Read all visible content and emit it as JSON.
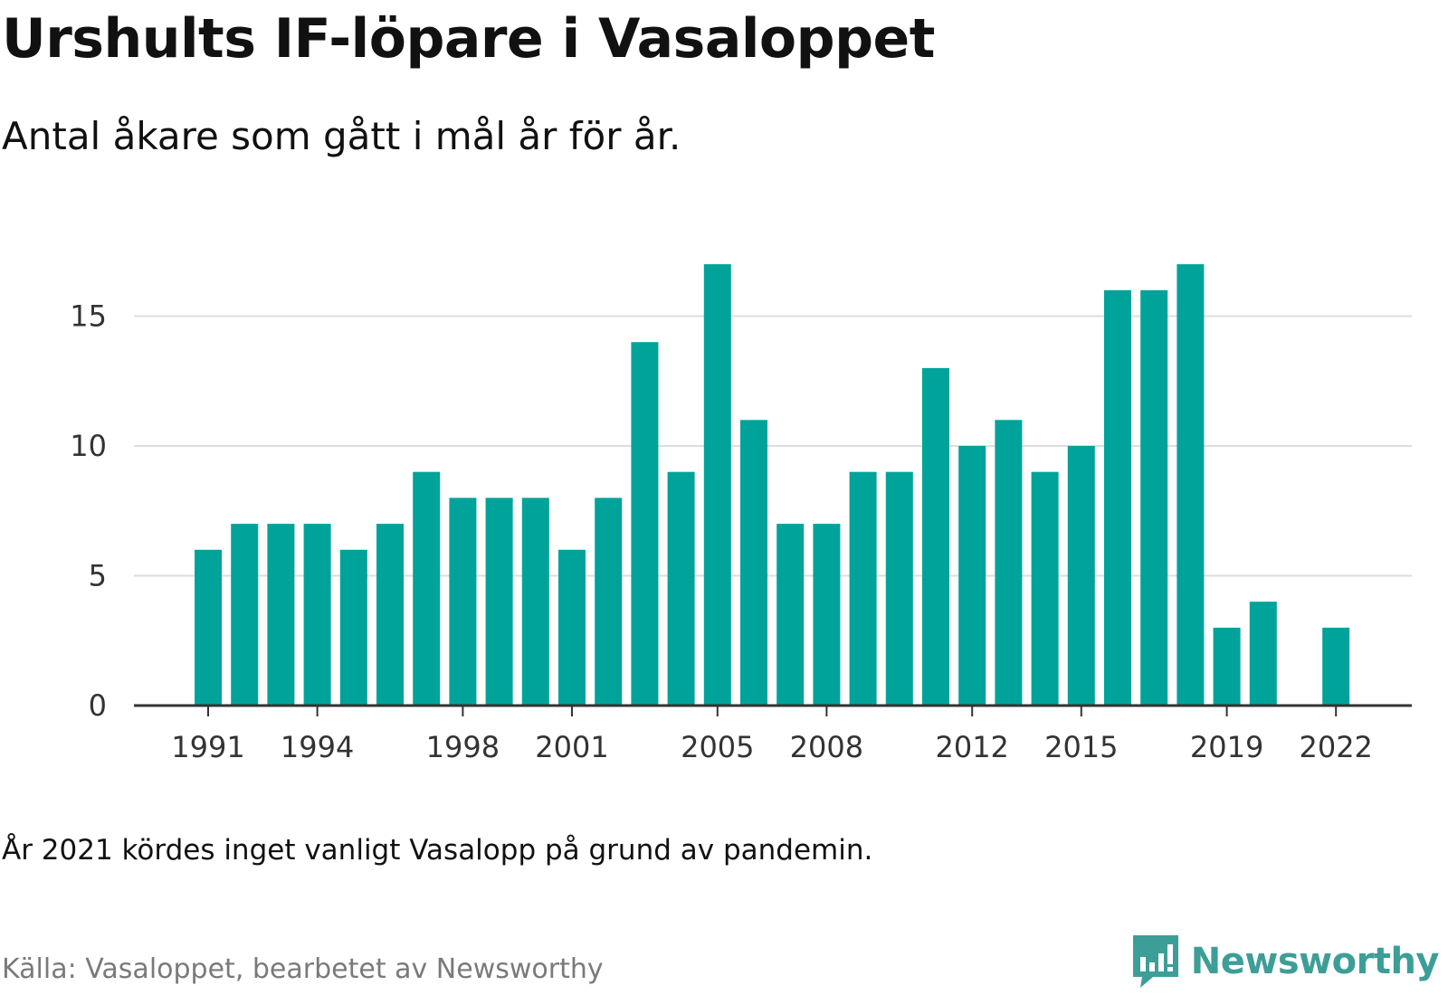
{
  "title": "Urshults IF-löpare i Vasaloppet",
  "subtitle": "Antal åkare som gått i mål år för år.",
  "note": "År 2021 kördes inget vanligt Vasalopp på grund av pandemin.",
  "source": "Källa: Vasaloppet, bearbetet av Newsworthy",
  "brand": {
    "name": "Newsworthy",
    "icon": "newsworthy-logo-icon",
    "color": "#3d9e98"
  },
  "colors": {
    "bar": "#00a39a",
    "grid": "#dddddd",
    "axis": "#333333"
  },
  "chart_data": {
    "type": "bar",
    "categories": [
      1991,
      1992,
      1993,
      1994,
      1995,
      1996,
      1997,
      1998,
      1999,
      2000,
      2001,
      2002,
      2003,
      2004,
      2005,
      2006,
      2007,
      2008,
      2009,
      2010,
      2011,
      2012,
      2013,
      2014,
      2015,
      2016,
      2017,
      2018,
      2019,
      2020,
      2021,
      2022
    ],
    "values": [
      6,
      7,
      7,
      7,
      6,
      7,
      9,
      8,
      8,
      8,
      6,
      8,
      14,
      9,
      17,
      11,
      7,
      7,
      9,
      9,
      13,
      10,
      11,
      9,
      10,
      16,
      16,
      17,
      3,
      4,
      0,
      3
    ],
    "x_tick_labels": [
      1991,
      1994,
      1998,
      2001,
      2005,
      2008,
      2012,
      2015,
      2019,
      2022
    ],
    "y_ticks": [
      0,
      5,
      10,
      15
    ],
    "ylim": [
      0,
      17
    ],
    "grid": true,
    "legend": "none"
  }
}
